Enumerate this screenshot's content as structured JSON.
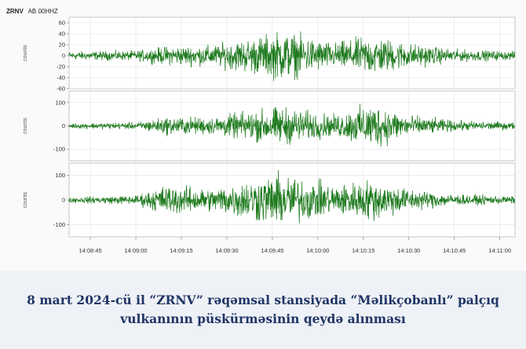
{
  "caption": "8 mart 2024-cü il “ZRNV” rəqəmsal stansiyada “Məlikçobanlı” palçıq vulkanının püskürməsinin qeydə alınması",
  "chart_data": {
    "type": "line",
    "station_code": "ZRNV",
    "channel": "AB 00HHZ",
    "trace_color": "#1e7a1e",
    "grid": true,
    "x_ticks": [
      "14:08:45",
      "14:09:00",
      "14:09:15",
      "14:09:30",
      "14:09:45",
      "14:10:00",
      "14:10:15",
      "14:10:30",
      "14:10:45",
      "14:11:00"
    ],
    "panels": [
      {
        "ylabel": "counts",
        "ylim": [
          -60,
          70
        ],
        "y_ticks": [
          60,
          40,
          20,
          0,
          -20,
          -40,
          -60
        ],
        "envelope": [
          {
            "t": "14:08:38",
            "amp": 10
          },
          {
            "t": "14:09:00",
            "amp": 12
          },
          {
            "t": "14:09:10",
            "amp": 22
          },
          {
            "t": "14:09:25",
            "amp": 25
          },
          {
            "t": "14:09:40",
            "amp": 45
          },
          {
            "t": "14:09:48",
            "amp": 60
          },
          {
            "t": "14:10:05",
            "amp": 30
          },
          {
            "t": "14:10:18",
            "amp": 48
          },
          {
            "t": "14:10:30",
            "amp": 30
          },
          {
            "t": "14:10:45",
            "amp": 15
          },
          {
            "t": "14:11:05",
            "amp": 10
          }
        ]
      },
      {
        "ylabel": "counts",
        "ylim": [
          -150,
          150
        ],
        "y_ticks": [
          100,
          0,
          -100
        ],
        "envelope": [
          {
            "t": "14:08:38",
            "amp": 15
          },
          {
            "t": "14:09:00",
            "amp": 20
          },
          {
            "t": "14:09:10",
            "amp": 50
          },
          {
            "t": "14:09:25",
            "amp": 50
          },
          {
            "t": "14:09:40",
            "amp": 90
          },
          {
            "t": "14:09:48",
            "amp": 110
          },
          {
            "t": "14:10:05",
            "amp": 60
          },
          {
            "t": "14:10:18",
            "amp": 130
          },
          {
            "t": "14:10:30",
            "amp": 60
          },
          {
            "t": "14:10:45",
            "amp": 30
          },
          {
            "t": "14:11:05",
            "amp": 20
          }
        ]
      },
      {
        "ylabel": "counts",
        "ylim": [
          -150,
          150
        ],
        "y_ticks": [
          100,
          0,
          -100
        ],
        "envelope": [
          {
            "t": "14:08:38",
            "amp": 15
          },
          {
            "t": "14:09:00",
            "amp": 25
          },
          {
            "t": "14:09:10",
            "amp": 80
          },
          {
            "t": "14:09:25",
            "amp": 60
          },
          {
            "t": "14:09:40",
            "amp": 120
          },
          {
            "t": "14:09:48",
            "amp": 140
          },
          {
            "t": "14:10:05",
            "amp": 80
          },
          {
            "t": "14:10:18",
            "amp": 110
          },
          {
            "t": "14:10:30",
            "amp": 60
          },
          {
            "t": "14:10:45",
            "amp": 30
          },
          {
            "t": "14:11:05",
            "amp": 20
          }
        ]
      }
    ]
  }
}
